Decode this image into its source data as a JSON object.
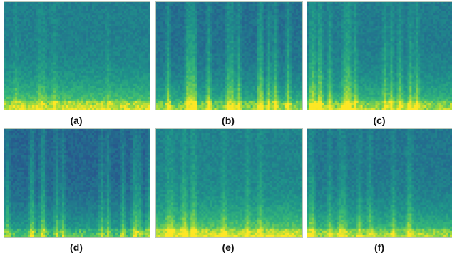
{
  "figure": {
    "colormap": [
      "#2f1e6b",
      "#2b4a8c",
      "#23718e",
      "#1f958a",
      "#35b779",
      "#8fd744",
      "#fde725"
    ],
    "panels": [
      {
        "id": "a",
        "caption": "(a)"
      },
      {
        "id": "b",
        "caption": "(b)"
      },
      {
        "id": "c",
        "caption": "(c)"
      },
      {
        "id": "d",
        "caption": "(d)"
      },
      {
        "id": "e",
        "caption": "(e)"
      },
      {
        "id": "f",
        "caption": "(f)"
      }
    ]
  }
}
